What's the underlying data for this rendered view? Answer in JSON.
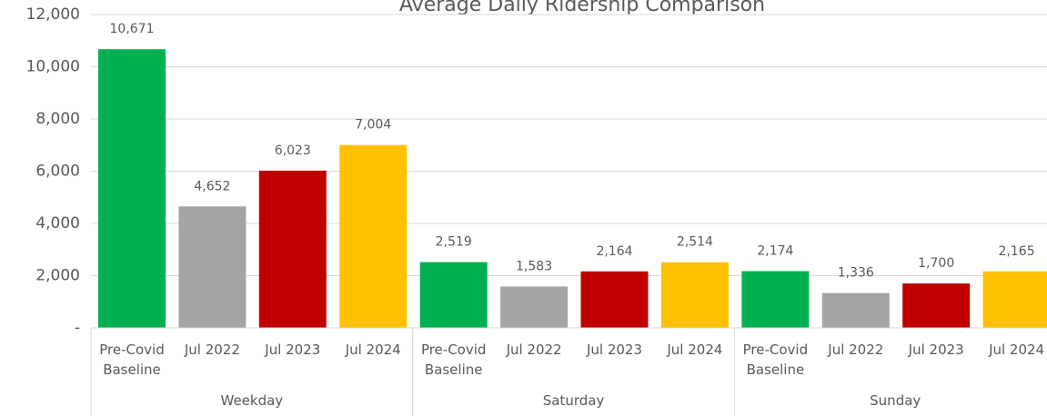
{
  "chart_data": {
    "type": "bar",
    "title": "Average Daily Ridership Comparison",
    "categories": [
      "Weekday",
      "Saturday",
      "Sunday"
    ],
    "series": [
      {
        "name": "Pre-Covid Baseline",
        "color": "#00b050",
        "values": [
          10671,
          2519,
          2174
        ],
        "value_labels": [
          "10,671",
          "2,519",
          "2,174"
        ]
      },
      {
        "name": "Jul 2022",
        "color": "#a5a5a5",
        "values": [
          4652,
          1583,
          1336
        ],
        "value_labels": [
          "4,652",
          "1,583",
          "1,336"
        ]
      },
      {
        "name": "Jul 2023",
        "color": "#c00000",
        "values": [
          6023,
          2164,
          1700
        ],
        "value_labels": [
          "6,023",
          "2,164",
          "1,700"
        ]
      },
      {
        "name": "Jul 2024",
        "color": "#ffc000",
        "values": [
          7004,
          2514,
          2165
        ],
        "value_labels": [
          "7,004",
          "2,514",
          "2,165"
        ]
      }
    ],
    "ylim": [
      0,
      12000
    ],
    "yticks": [
      {
        "value": 0,
        "label": "-"
      },
      {
        "value": 2000,
        "label": "2,000"
      },
      {
        "value": 4000,
        "label": "4,000"
      },
      {
        "value": 6000,
        "label": "6,000"
      },
      {
        "value": 8000,
        "label": "8,000"
      },
      {
        "value": 10000,
        "label": "10,000"
      },
      {
        "value": 12000,
        "label": "12,000"
      }
    ],
    "grid": true
  }
}
